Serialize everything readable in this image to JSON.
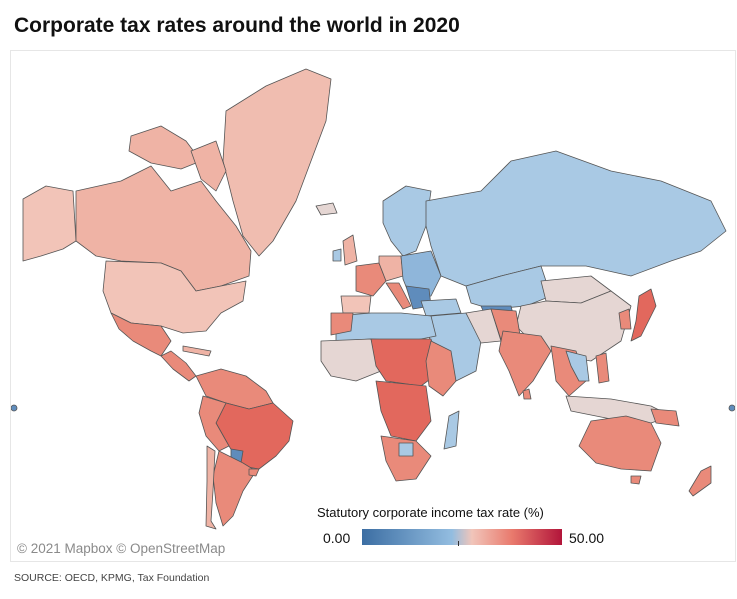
{
  "title": "Corporate tax rates around the world in 2020",
  "attribution": "© 2021 Mapbox © OpenStreetMap",
  "legend": {
    "title": "Statutory corporate income tax rate (%)",
    "min_label": "0.00",
    "max_label": "50.00",
    "min_value": 0,
    "max_value": 50,
    "color_low": "#3c6ea3",
    "color_mid": "#e8dcd9",
    "color_high": "#b2153a"
  },
  "source": "SOURCE: OECD, KPMG, Tax Foundation",
  "colors": {
    "ocean": "#ffffff",
    "land_border": "#555555",
    "pale_pink": "#f2c4b8",
    "light_salmon": "#efb3a5",
    "salmon": "#e98a7a",
    "red": "#e2685d",
    "light_blue": "#a9c9e4",
    "mid_blue": "#8fb6da",
    "dark_blue": "#5f8cbc",
    "gray_pink": "#e5d6d3"
  }
}
